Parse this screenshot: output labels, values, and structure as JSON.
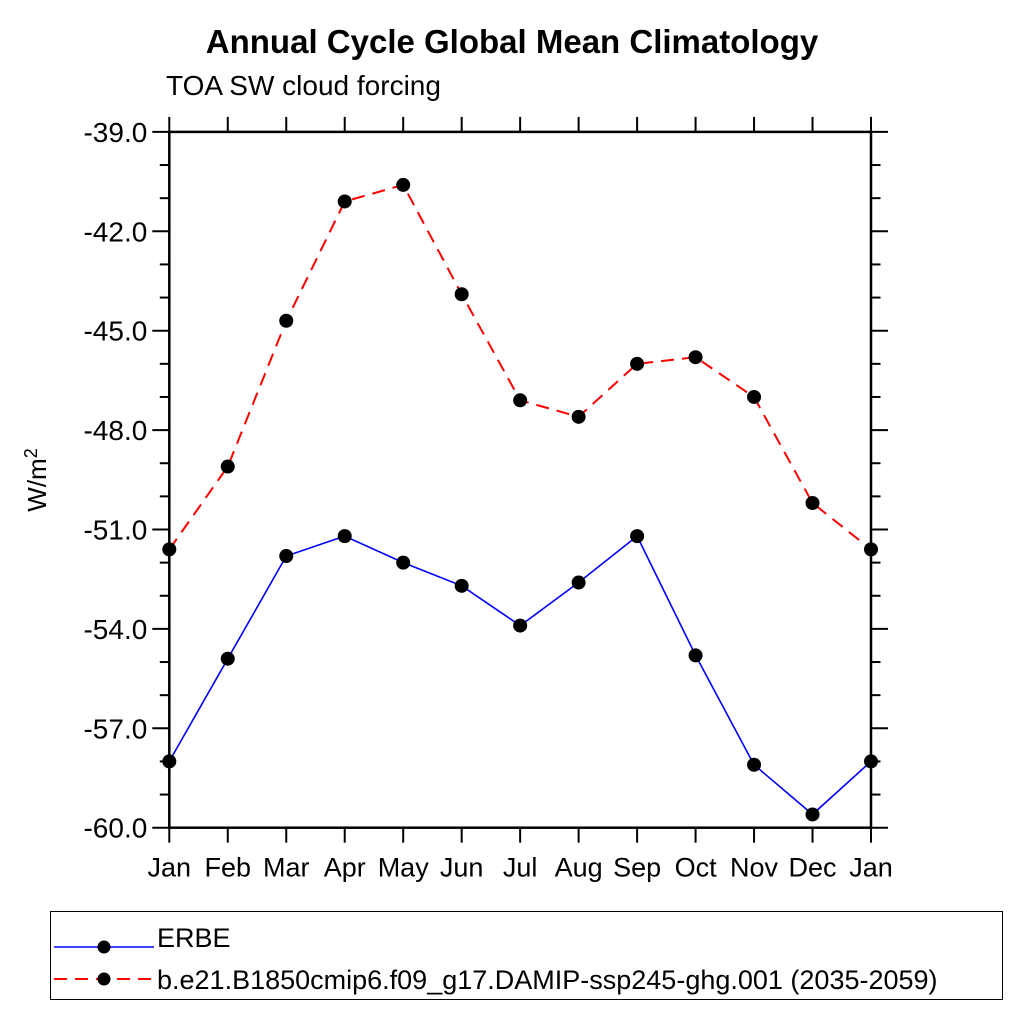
{
  "chart_data": {
    "type": "line",
    "title": "Annual Cycle Global Mean Climatology",
    "subtitle": "TOA SW cloud forcing",
    "ylabel_base": "W/m",
    "ylabel_exponent": "2",
    "x_tick_labels": [
      "Jan",
      "Feb",
      "Mar",
      "Apr",
      "May",
      "Jun",
      "Jul",
      "Aug",
      "Sep",
      "Oct",
      "Nov",
      "Dec",
      "Jan"
    ],
    "y_tick_labels": [
      "-39.0",
      "-42.0",
      "-45.0",
      "-48.0",
      "-51.0",
      "-54.0",
      "-57.0",
      "-60.0"
    ],
    "ylim": [
      -60.0,
      -39.0
    ],
    "y_major_step": 3,
    "y_minor_step": 1,
    "grid": "off",
    "legend_position": "bottom",
    "marker_color": "#000000",
    "series": [
      {
        "name": "ERBE",
        "style": "solid",
        "color": "#0000ff",
        "values": [
          -58.0,
          -54.9,
          -51.8,
          -51.2,
          -52.0,
          -52.7,
          -53.9,
          -52.6,
          -51.2,
          -54.8,
          -58.1,
          -59.6,
          -58.0
        ]
      },
      {
        "name": "b.e21.B1850cmip6.f09_g17.DAMIP-ssp245-ghg.001 (2035-2059)",
        "style": "dashed",
        "color": "#ff0000",
        "values": [
          -51.6,
          -49.1,
          -44.7,
          -41.1,
          -40.6,
          -43.9,
          -47.1,
          -47.6,
          -46.0,
          -45.8,
          -47.0,
          -50.2,
          -51.6
        ]
      }
    ]
  }
}
